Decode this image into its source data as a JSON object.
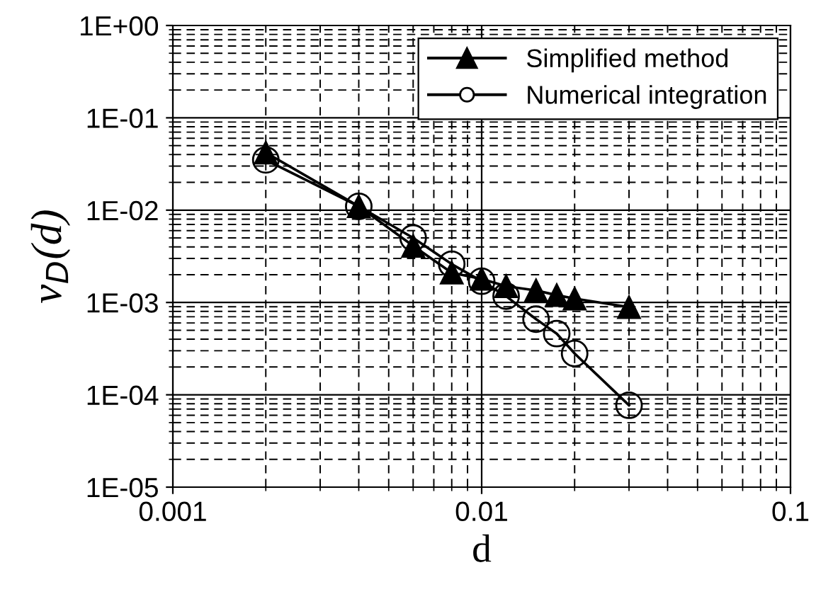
{
  "chart_data": {
    "type": "line",
    "xlabel": "d",
    "ylabel": "ν$_{D}$(d)",
    "log": "xy",
    "grid": true,
    "legend": "top right",
    "xlim": [
      0.001,
      0.1
    ],
    "xticks": [
      0.001,
      0.01,
      0.1
    ],
    "ylim": [
      1e-05,
      1
    ],
    "yticks": [
      {
        "value": 1e-05,
        "label": "1E-05"
      },
      {
        "value": 0.0001,
        "label": "1E-04"
      },
      {
        "value": 0.001,
        "label": "1E-03"
      },
      {
        "value": 0.01,
        "label": "1E-02"
      },
      {
        "value": 0.1,
        "label": "1E-01"
      },
      {
        "value": 1,
        "label": "1E+00"
      }
    ],
    "series": [
      {
        "name": "Simplified method",
        "color": "#000000",
        "marker": "triangle",
        "x": [
          0.002,
          0.004,
          0.006,
          0.008,
          0.01,
          0.012,
          0.015,
          0.0175,
          0.02,
          0.03
        ],
        "values": [
          0.042,
          0.011,
          0.0041,
          0.0021,
          0.0018,
          0.0015,
          0.00135,
          0.0012,
          0.0011,
          0.00089
        ]
      },
      {
        "name": "Numerical integration",
        "color": "#000000",
        "marker": "circle",
        "x": [
          0.002,
          0.004,
          0.006,
          0.008,
          0.01,
          0.012,
          0.015,
          0.0175,
          0.02,
          0.03
        ],
        "values": [
          0.035,
          0.011,
          0.005,
          0.0026,
          0.0017,
          0.00117,
          0.00066,
          0.00046,
          0.00028,
          7.7e-05
        ]
      }
    ]
  }
}
